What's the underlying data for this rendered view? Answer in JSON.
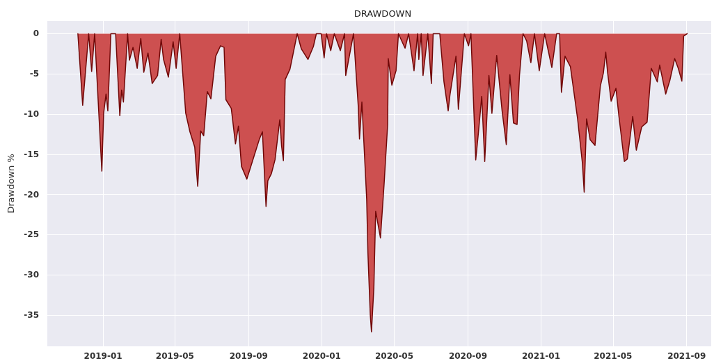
{
  "chart_data": {
    "type": "area",
    "title": "DRAWDOWN",
    "ylabel": "Drawdown %",
    "grid": true,
    "marker": "none",
    "line_style": "solid",
    "xlim": [
      "2018-09-30",
      "2021-10-12"
    ],
    "ylim": [
      -38.9,
      1.6
    ],
    "xticks": [
      "2019-01",
      "2019-05",
      "2019-09",
      "2020-01",
      "2020-05",
      "2020-09",
      "2021-01",
      "2021-05",
      "2021-09"
    ],
    "yticks": [
      0,
      -5,
      -10,
      -15,
      -20,
      -25,
      -30,
      -35
    ],
    "series": [
      {
        "color": "#cd5050",
        "x": [
          "2018-11-20",
          "2018-11-28",
          "2018-12-08",
          "2018-12-13",
          "2018-12-18",
          "2018-12-30",
          "2019-01-02",
          "2019-01-06",
          "2019-01-09",
          "2019-01-14",
          "2019-01-22",
          "2019-01-29",
          "2019-02-01",
          "2019-02-04",
          "2019-02-11",
          "2019-02-14",
          "2019-02-20",
          "2019-02-27",
          "2019-03-05",
          "2019-03-10",
          "2019-03-17",
          "2019-03-24",
          "2019-04-02",
          "2019-04-08",
          "2019-04-12",
          "2019-04-20",
          "2019-04-28",
          "2019-05-03",
          "2019-05-09",
          "2019-05-19",
          "2019-05-26",
          "2019-06-03",
          "2019-06-08",
          "2019-06-13",
          "2019-06-18",
          "2019-06-24",
          "2019-06-30",
          "2019-07-08",
          "2019-07-16",
          "2019-07-22",
          "2019-07-25",
          "2019-08-03",
          "2019-08-10",
          "2019-08-15",
          "2019-08-20",
          "2019-08-29",
          "2019-09-08",
          "2019-09-19",
          "2019-09-24",
          "2019-09-30",
          "2019-10-03",
          "2019-10-09",
          "2019-10-15",
          "2019-10-23",
          "2019-10-26",
          "2019-10-29",
          "2019-11-01",
          "2019-11-09",
          "2019-11-21",
          "2019-11-28",
          "2019-12-09",
          "2019-12-18",
          "2019-12-23",
          "2019-12-31",
          "2020-01-05",
          "2020-01-09",
          "2020-01-16",
          "2020-01-22",
          "2020-02-01",
          "2020-02-08",
          "2020-02-10",
          "2020-02-23",
          "2020-03-02",
          "2020-03-04",
          "2020-03-08",
          "2020-03-16",
          "2020-03-18",
          "2020-03-22",
          "2020-03-24",
          "2020-03-28",
          "2020-03-31",
          "2020-04-08",
          "2020-04-14",
          "2020-04-20",
          "2020-04-21",
          "2020-04-27",
          "2020-05-04",
          "2020-05-08",
          "2020-05-19",
          "2020-05-25",
          "2020-06-03",
          "2020-06-09",
          "2020-06-11",
          "2020-06-15",
          "2020-06-18",
          "2020-06-26",
          "2020-07-02",
          "2020-07-05",
          "2020-07-16",
          "2020-07-23",
          "2020-07-30",
          "2020-08-02",
          "2020-08-12",
          "2020-08-16",
          "2020-08-26",
          "2020-09-02",
          "2020-09-06",
          "2020-09-14",
          "2020-09-18",
          "2020-09-24",
          "2020-09-29",
          "2020-10-06",
          "2020-10-11",
          "2020-10-19",
          "2020-10-28",
          "2020-11-04",
          "2020-11-10",
          "2020-11-16",
          "2020-11-22",
          "2020-11-26",
          "2020-12-02",
          "2020-12-08",
          "2020-12-15",
          "2020-12-21",
          "2020-12-29",
          "2021-01-07",
          "2021-01-13",
          "2021-01-19",
          "2021-01-27",
          "2021-02-01",
          "2021-02-04",
          "2021-02-10",
          "2021-02-19",
          "2021-03-03",
          "2021-03-11",
          "2021-03-14",
          "2021-03-18",
          "2021-03-24",
          "2021-04-01",
          "2021-04-10",
          "2021-04-15",
          "2021-04-19",
          "2021-04-22",
          "2021-04-28",
          "2021-05-06",
          "2021-05-11",
          "2021-05-20",
          "2021-05-25",
          "2021-06-03",
          "2021-06-09",
          "2021-06-18",
          "2021-06-27",
          "2021-07-04",
          "2021-07-14",
          "2021-07-18",
          "2021-07-28",
          "2021-08-04",
          "2021-08-12",
          "2021-08-18",
          "2021-08-24",
          "2021-08-27",
          "2021-09-02"
        ],
        "values": [
          0,
          -8.9,
          0,
          -4.7,
          0,
          -17.1,
          -9.9,
          -7.5,
          -9.6,
          0,
          0,
          -10.2,
          -7,
          -8.5,
          0,
          -3.3,
          -1.7,
          -4.3,
          -0.6,
          -4.8,
          -2.4,
          -6.2,
          -5.2,
          -0.7,
          -3.2,
          -5.4,
          -1,
          -4.3,
          0,
          -9.9,
          -12.2,
          -14.1,
          -19,
          -12.1,
          -12.7,
          -7.2,
          -8.1,
          -2.8,
          -1.5,
          -1.7,
          -8.2,
          -9.3,
          -13.7,
          -11.5,
          -16.5,
          -18.1,
          -15.7,
          -13.1,
          -12.2,
          -21.5,
          -18.3,
          -17.4,
          -15.7,
          -10.7,
          -14,
          -15.8,
          -5.7,
          -4.4,
          0,
          -1.9,
          -3.2,
          -1.6,
          0,
          0,
          -3,
          0,
          -2.1,
          0,
          -2.1,
          0,
          -5.2,
          0,
          -9.1,
          -13.1,
          -8.5,
          -20.6,
          -27.2,
          -35,
          -37.1,
          -31.6,
          -22.1,
          -25.4,
          -18.8,
          -11.3,
          -3.1,
          -6.4,
          -4.6,
          0,
          -1.8,
          0,
          -4.6,
          0,
          -3.2,
          0,
          -5.2,
          0,
          -6.2,
          0,
          0,
          -6,
          -9.6,
          -7.6,
          -2.8,
          -9.4,
          0,
          -1.5,
          0,
          -15.7,
          -12.7,
          -7.8,
          -15.9,
          -5.2,
          -9.9,
          -2.7,
          -9.6,
          -13.8,
          -5.1,
          -11.1,
          -11.3,
          -5.2,
          0,
          -0.9,
          -3.6,
          0,
          -4.6,
          0,
          -2.1,
          -4.2,
          0,
          0,
          -7.3,
          -2.8,
          -4.1,
          -10.6,
          -16.1,
          -19.7,
          -10.6,
          -13.2,
          -13.9,
          -6.5,
          -4.9,
          -2.3,
          -4.8,
          -8.4,
          -6.8,
          -10.3,
          -15.9,
          -15.6,
          -10.3,
          -14.5,
          -11.6,
          -11,
          -4.3,
          -6,
          -3.9,
          -7.5,
          -5.8,
          -3.1,
          -4.3,
          -5.9,
          -0.3,
          0
        ]
      }
    ]
  }
}
